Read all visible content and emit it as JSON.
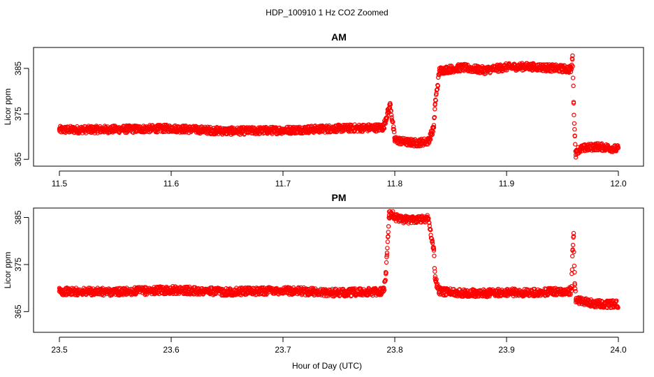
{
  "figure": {
    "title": "HDP_100910  1 Hz CO2 Zoomed",
    "xlabel": "Hour of Day (UTC)"
  },
  "chart_data": [
    {
      "type": "scatter",
      "title": "AM",
      "xlabel": "Hour of Day (UTC)",
      "ylabel": "Licor ppm",
      "xlim": [
        11.5,
        12.0
      ],
      "ylim": [
        363.5,
        389.6
      ],
      "x_ticks": [
        "11.5",
        "11.6",
        "11.7",
        "11.8",
        "11.9",
        "12.0"
      ],
      "y_ticks": [
        "365",
        "375",
        "385"
      ],
      "color": "#ff0000",
      "series": [
        {
          "x": [
            11.5,
            11.55,
            11.6,
            11.65,
            11.7,
            11.75,
            11.79,
            11.792,
            11.794,
            11.796,
            11.8,
            11.81,
            11.82,
            11.83,
            11.835,
            11.836,
            11.84,
            11.86,
            11.88,
            11.9,
            11.92,
            11.94,
            11.958,
            11.959,
            11.96,
            11.961,
            11.962,
            11.963,
            11.97,
            11.98,
            11.99,
            11.998
          ],
          "y": [
            371.5,
            371.6,
            371.8,
            371.2,
            371.4,
            371.8,
            372.0,
            374.0,
            375.5,
            377.0,
            369.3,
            368.8,
            368.6,
            369.0,
            372.0,
            377.0,
            384.5,
            385.2,
            384.6,
            385.3,
            385.4,
            385.1,
            384.8,
            387.8,
            377.6,
            370.2,
            366.0,
            367.0,
            367.5,
            367.8,
            367.6,
            367.3
          ]
        }
      ]
    },
    {
      "type": "scatter",
      "title": "PM",
      "xlabel": "Hour of Day (UTC)",
      "ylabel": "Licor ppm",
      "xlim": [
        23.5,
        24.0
      ],
      "ylim": [
        360.6,
        387.0
      ],
      "x_ticks": [
        "23.5",
        "23.6",
        "23.7",
        "23.8",
        "23.9",
        "24.0"
      ],
      "y_ticks": [
        "365",
        "375",
        "385"
      ],
      "color": "#ff0000",
      "series": [
        {
          "x": [
            23.5,
            23.55,
            23.6,
            23.65,
            23.7,
            23.75,
            23.79,
            23.792,
            23.793,
            23.794,
            23.795,
            23.797,
            23.8,
            23.81,
            23.82,
            23.83,
            23.835,
            23.836,
            23.84,
            23.86,
            23.88,
            23.9,
            23.92,
            23.94,
            23.958,
            23.959,
            23.96,
            23.961,
            23.962,
            23.965,
            23.975,
            23.99
          ],
          "y": [
            369.3,
            369.2,
            369.6,
            369.2,
            369.5,
            369.0,
            369.3,
            373.0,
            377.0,
            381.0,
            385.5,
            386.0,
            385.0,
            384.5,
            384.7,
            384.8,
            378.0,
            372.0,
            369.3,
            369.0,
            368.9,
            369.1,
            369.0,
            369.2,
            369.4,
            378.0,
            381.0,
            371.0,
            367.5,
            367.3,
            366.8,
            366.6
          ]
        }
      ]
    }
  ]
}
